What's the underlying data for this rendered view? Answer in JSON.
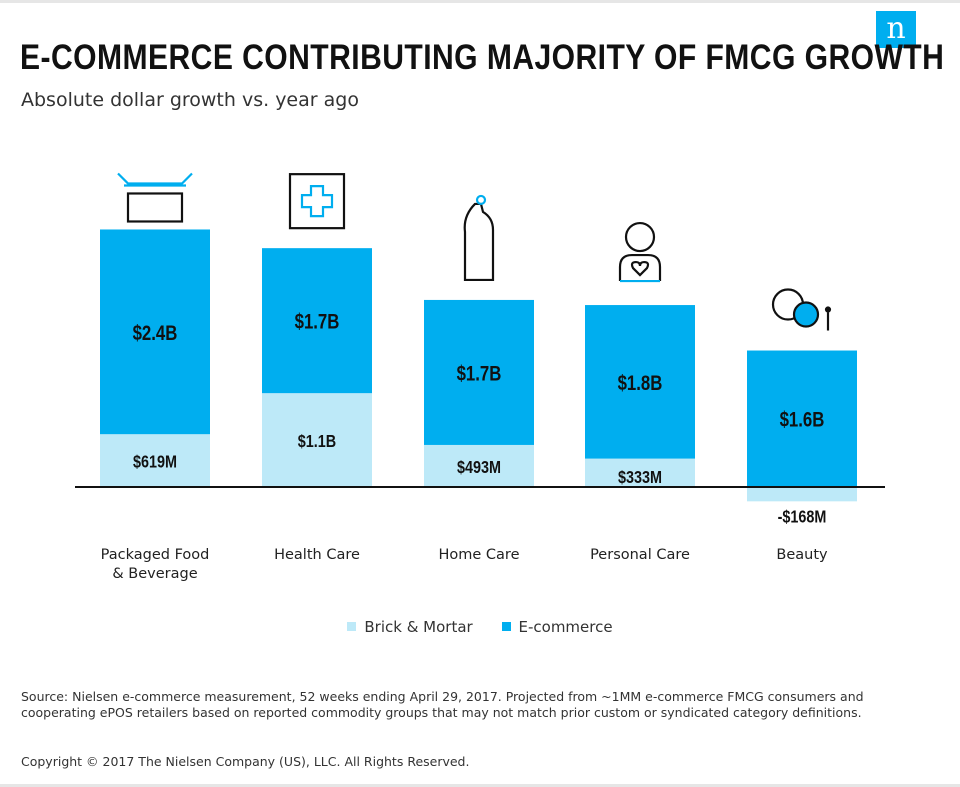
{
  "header": {
    "title": "E-COMMERCE CONTRIBUTING MAJORITY OF FMCG GROWTH",
    "subtitle": "Absolute dollar growth vs. year ago",
    "logo_text": "n"
  },
  "colors": {
    "brick_mortar": "#bde9f8",
    "ecommerce": "#00aeef",
    "axis": "#111111",
    "icon_accent": "#00aeef",
    "logo_bg": "#00aeef"
  },
  "chart_data": {
    "type": "bar",
    "stacked": true,
    "categories": [
      "Packaged Food & Beverage",
      "Health Care",
      "Home Care",
      "Personal Care",
      "Beauty"
    ],
    "category_lines": [
      [
        "Packaged Food",
        "& Beverage"
      ],
      [
        "Health Care"
      ],
      [
        "Home Care"
      ],
      [
        "Personal Care"
      ],
      [
        "Beauty"
      ]
    ],
    "category_icons": [
      "box-icon",
      "medical-cross-icon",
      "cleaning-bottle-icon",
      "person-heart-icon",
      "makeup-compact-icon"
    ],
    "unit": "$B",
    "series": [
      {
        "name": "Brick & Mortar",
        "values": [
          0.619,
          1.1,
          0.493,
          0.333,
          -0.168
        ],
        "labels": [
          "$619M",
          "$1.1B",
          "$493M",
          "$333M",
          "-$168M"
        ]
      },
      {
        "name": "E-commerce",
        "values": [
          2.4,
          1.7,
          1.7,
          1.8,
          1.6
        ],
        "labels": [
          "$2.4B",
          "$1.7B",
          "$1.7B",
          "$1.8B",
          "$1.6B"
        ]
      }
    ],
    "title": "E-COMMERCE CONTRIBUTING MAJORITY OF FMCG GROWTH",
    "subtitle": "Absolute dollar growth vs. year ago",
    "xlabel": "",
    "ylabel": "",
    "grid": false,
    "legend_position": "bottom"
  },
  "legend": [
    {
      "label": "Brick & Mortar",
      "color": "#bde9f8"
    },
    {
      "label": "E-commerce",
      "color": "#00aeef"
    }
  ],
  "footer": {
    "source": "Source: Nielsen e-commerce measurement, 52 weeks ending April 29, 2017. Projected from ~1MM e-commerce FMCG consumers and cooperating ePOS retailers based on reported commodity groups that may not match prior custom or syndicated category definitions.",
    "copyright": "Copyright © 2017 The Nielsen Company (US), LLC. All Rights Reserved."
  }
}
